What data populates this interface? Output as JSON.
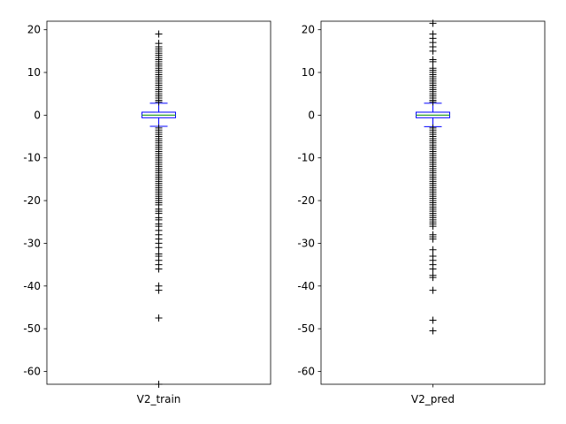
{
  "chart_data": [
    {
      "type": "boxplot",
      "title": "",
      "xlabel": "",
      "ylabel": "",
      "categories": [
        "V2_train"
      ],
      "ylim": [
        -63,
        22
      ],
      "yticks": [
        20,
        10,
        0,
        -10,
        -20,
        -30,
        -40,
        -50,
        -60
      ],
      "grid": false,
      "box": {
        "q1": -0.6,
        "median": 0.0,
        "q3": 0.7,
        "whisker_low": -2.6,
        "whisker_high": 2.8
      },
      "outliers_high": [
        19.0,
        16.8,
        16.0,
        15.5,
        15.0,
        14.5,
        14.0,
        13.5,
        13.0,
        12.5,
        12.0,
        11.5,
        11.0,
        10.5,
        10.0,
        9.5,
        9.0,
        8.5,
        8.0,
        7.5,
        7.0,
        6.5,
        6.0,
        5.5,
        5.0,
        4.5,
        4.0,
        3.5,
        3.1
      ],
      "outliers_low": [
        -3.0,
        -3.5,
        -4.0,
        -4.5,
        -5.0,
        -5.5,
        -6.0,
        -6.5,
        -7.0,
        -7.5,
        -8.0,
        -8.5,
        -9.0,
        -9.5,
        -10.0,
        -10.5,
        -11.0,
        -11.5,
        -12.0,
        -12.5,
        -13.0,
        -13.5,
        -14.0,
        -14.5,
        -15.0,
        -15.5,
        -16.0,
        -16.5,
        -17.0,
        -17.5,
        -18.0,
        -18.5,
        -19.0,
        -19.5,
        -20.0,
        -20.5,
        -21.0,
        -22.0,
        -22.5,
        -23.0,
        -24.0,
        -24.5,
        -25.5,
        -26.0,
        -27.0,
        -28.0,
        -29.0,
        -30.0,
        -31.0,
        -32.5,
        -33.0,
        -34.0,
        -35.0,
        -36.0,
        -40.0,
        -41.0,
        -47.5,
        -63.0
      ]
    },
    {
      "type": "boxplot",
      "title": "",
      "xlabel": "",
      "ylabel": "",
      "categories": [
        "V2_pred"
      ],
      "ylim": [
        -63,
        22
      ],
      "yticks": [
        20,
        10,
        0,
        -10,
        -20,
        -30,
        -40,
        -50,
        -60
      ],
      "grid": false,
      "box": {
        "q1": -0.6,
        "median": 0.0,
        "q3": 0.7,
        "whisker_low": -2.7,
        "whisker_high": 2.8
      },
      "outliers_high": [
        21.5,
        19.0,
        18.0,
        17.0,
        16.0,
        15.0,
        13.0,
        12.5,
        11.0,
        10.5,
        10.0,
        9.5,
        9.0,
        8.5,
        8.0,
        7.5,
        7.0,
        6.5,
        6.0,
        5.5,
        5.0,
        4.5,
        4.0,
        3.5,
        3.1
      ],
      "outliers_low": [
        -3.0,
        -3.5,
        -4.0,
        -4.5,
        -5.0,
        -5.5,
        -6.0,
        -6.5,
        -7.0,
        -7.5,
        -8.0,
        -8.5,
        -9.0,
        -9.5,
        -10.0,
        -10.5,
        -11.0,
        -11.5,
        -12.0,
        -12.5,
        -13.0,
        -13.5,
        -14.0,
        -14.5,
        -15.0,
        -15.5,
        -16.0,
        -16.5,
        -17.0,
        -17.5,
        -18.0,
        -18.5,
        -19.0,
        -19.5,
        -20.0,
        -20.5,
        -21.0,
        -21.5,
        -22.0,
        -22.5,
        -23.0,
        -23.5,
        -24.0,
        -24.5,
        -25.0,
        -25.5,
        -26.0,
        -28.0,
        -28.5,
        -29.0,
        -31.5,
        -33.0,
        -34.0,
        -35.0,
        -36.0,
        -37.5,
        -38.0,
        -41.0,
        -48.0,
        -50.5
      ]
    }
  ]
}
